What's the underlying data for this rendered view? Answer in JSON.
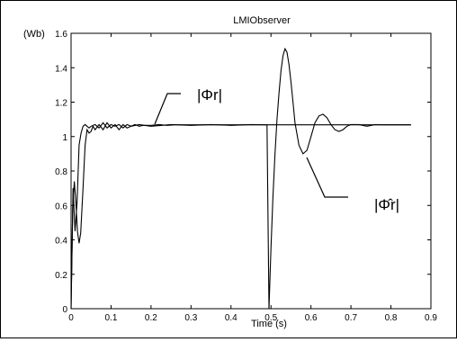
{
  "chart_data": {
    "type": "line",
    "title": "LMIObserver",
    "xlabel": "Time (s)",
    "ylabel": "(Wb)",
    "xlim": [
      0,
      0.9
    ],
    "ylim": [
      0,
      1.6
    ],
    "xticks": [
      0,
      0.1,
      0.2,
      0.3,
      0.4,
      0.5,
      0.6,
      0.7,
      0.8,
      0.9
    ],
    "xtick_labels": [
      "0",
      "0.1",
      "0.2",
      "0.3",
      "0.4",
      "0.5",
      "0.6",
      "0.7",
      "0.8",
      "0.9"
    ],
    "yticks": [
      0,
      0.2,
      0.4,
      0.6,
      0.8,
      1,
      1.2,
      1.4,
      1.6
    ],
    "ytick_labels": [
      "0",
      "0.2",
      "0.4",
      "0.6",
      "0.8",
      "1",
      "1.2",
      "1.4",
      "1.6"
    ],
    "grid": false,
    "series": [
      {
        "name": "|Φr|",
        "x": [
          0,
          0.005,
          0.01,
          0.015,
          0.02,
          0.025,
          0.03,
          0.035,
          0.04,
          0.045,
          0.05,
          0.06,
          0.07,
          0.08,
          0.09,
          0.1,
          0.11,
          0.12,
          0.13,
          0.14,
          0.15,
          0.16,
          0.17,
          0.18,
          0.2,
          0.22,
          0.24,
          0.26,
          0.85
        ],
        "y": [
          0,
          0.7,
          0.45,
          0.62,
          0.95,
          1.02,
          1.06,
          1.07,
          1.06,
          1.05,
          1.06,
          1.07,
          1.05,
          1.08,
          1.05,
          1.07,
          1.06,
          1.07,
          1.05,
          1.07,
          1.06,
          1.07,
          1.06,
          1.065,
          1.065,
          1.07,
          1.065,
          1.068,
          1.068
        ]
      },
      {
        "name": "|Φ̂r|",
        "x": [
          0,
          0.004,
          0.008,
          0.012,
          0.016,
          0.02,
          0.024,
          0.03,
          0.035,
          0.04,
          0.045,
          0.05,
          0.055,
          0.06,
          0.07,
          0.08,
          0.09,
          0.1,
          0.11,
          0.12,
          0.13,
          0.14,
          0.15,
          0.17,
          0.2,
          0.25,
          0.3,
          0.35,
          0.4,
          0.45,
          0.49,
          0.495,
          0.5,
          0.505,
          0.51,
          0.515,
          0.52,
          0.525,
          0.53,
          0.535,
          0.54,
          0.545,
          0.55,
          0.555,
          0.56,
          0.57,
          0.58,
          0.59,
          0.6,
          0.61,
          0.62,
          0.63,
          0.64,
          0.65,
          0.66,
          0.67,
          0.68,
          0.69,
          0.7,
          0.72,
          0.74,
          0.76,
          0.78,
          0.8,
          0.85
        ],
        "y": [
          0,
          0.58,
          0.74,
          0.62,
          0.45,
          0.38,
          0.44,
          0.7,
          0.95,
          1.04,
          1.02,
          1.03,
          1.06,
          1.04,
          1.07,
          1.04,
          1.08,
          1.05,
          1.07,
          1.04,
          1.07,
          1.05,
          1.06,
          1.07,
          1.06,
          1.07,
          1.065,
          1.07,
          1.065,
          1.07,
          1.068,
          0.0,
          0.35,
          0.65,
          0.9,
          1.1,
          1.25,
          1.38,
          1.47,
          1.51,
          1.49,
          1.42,
          1.32,
          1.2,
          1.08,
          0.95,
          0.9,
          0.92,
          1.0,
          1.08,
          1.12,
          1.13,
          1.11,
          1.07,
          1.04,
          1.03,
          1.04,
          1.06,
          1.07,
          1.07,
          1.06,
          1.07,
          1.068,
          1.068,
          1.068
        ]
      }
    ],
    "annotations": [
      {
        "text": "|Φr|",
        "series": 0
      },
      {
        "text": "|Φ̂r|",
        "series": 1
      }
    ]
  }
}
